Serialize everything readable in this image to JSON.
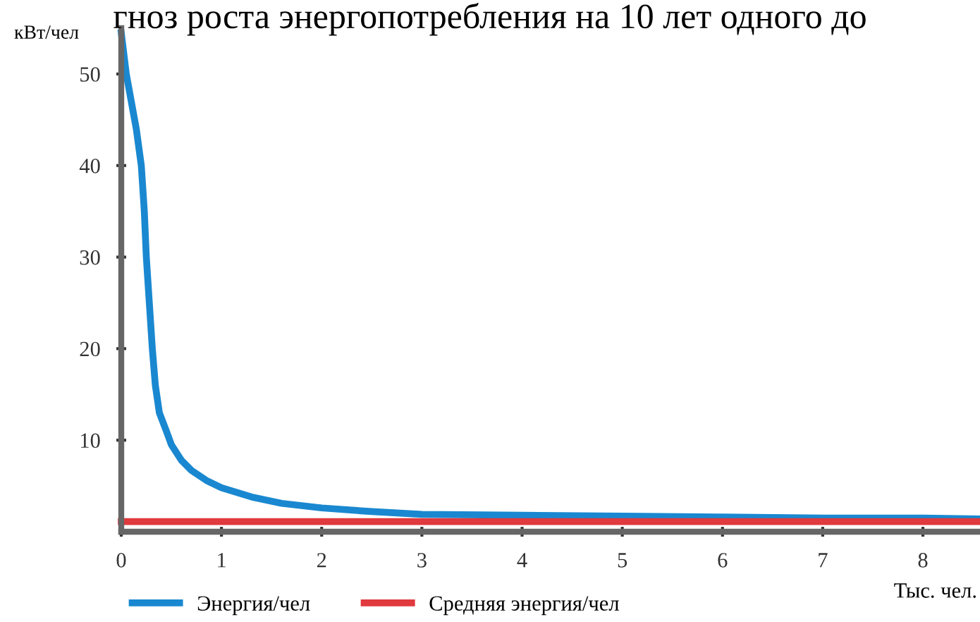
{
  "chart_data": {
    "type": "line",
    "title": "гноз роста энергопотребления на 10 лет одного до",
    "xlabel": "Тыс. чел.",
    "ylabel": "кВт/чел",
    "xlim": [
      0,
      8.56
    ],
    "xticks": [
      0,
      1,
      2,
      3,
      4,
      5,
      6,
      7,
      8
    ],
    "ylim": [
      0,
      55
    ],
    "yticks": [
      10,
      20,
      30,
      40,
      50
    ],
    "grid": false,
    "legend": "bottom",
    "line_style": "solid",
    "marker": "none",
    "series": [
      {
        "name": "Энергия/чел",
        "color": "#1a88d0",
        "x": [
          0,
          0.05,
          0.1,
          0.15,
          0.2,
          0.23,
          0.25,
          0.28,
          0.31,
          0.34,
          0.38,
          0.45,
          0.5,
          0.6,
          0.7,
          0.85,
          1,
          1.3,
          1.6,
          2,
          2.5,
          3,
          4,
          5,
          6,
          7,
          8,
          8.56
        ],
        "values": [
          54.5,
          50,
          47,
          44,
          40,
          35,
          30,
          25,
          20,
          16,
          13,
          11,
          9.5,
          7.8,
          6.7,
          5.6,
          4.8,
          3.8,
          3.1,
          2.6,
          2.2,
          1.9,
          1.8,
          1.7,
          1.6,
          1.5,
          1.5,
          1.4
        ]
      },
      {
        "name": "Средняя энергия/чел",
        "color": "#e0393e",
        "x": [
          0,
          8.56
        ],
        "values": [
          1.1,
          1.1
        ]
      }
    ]
  }
}
